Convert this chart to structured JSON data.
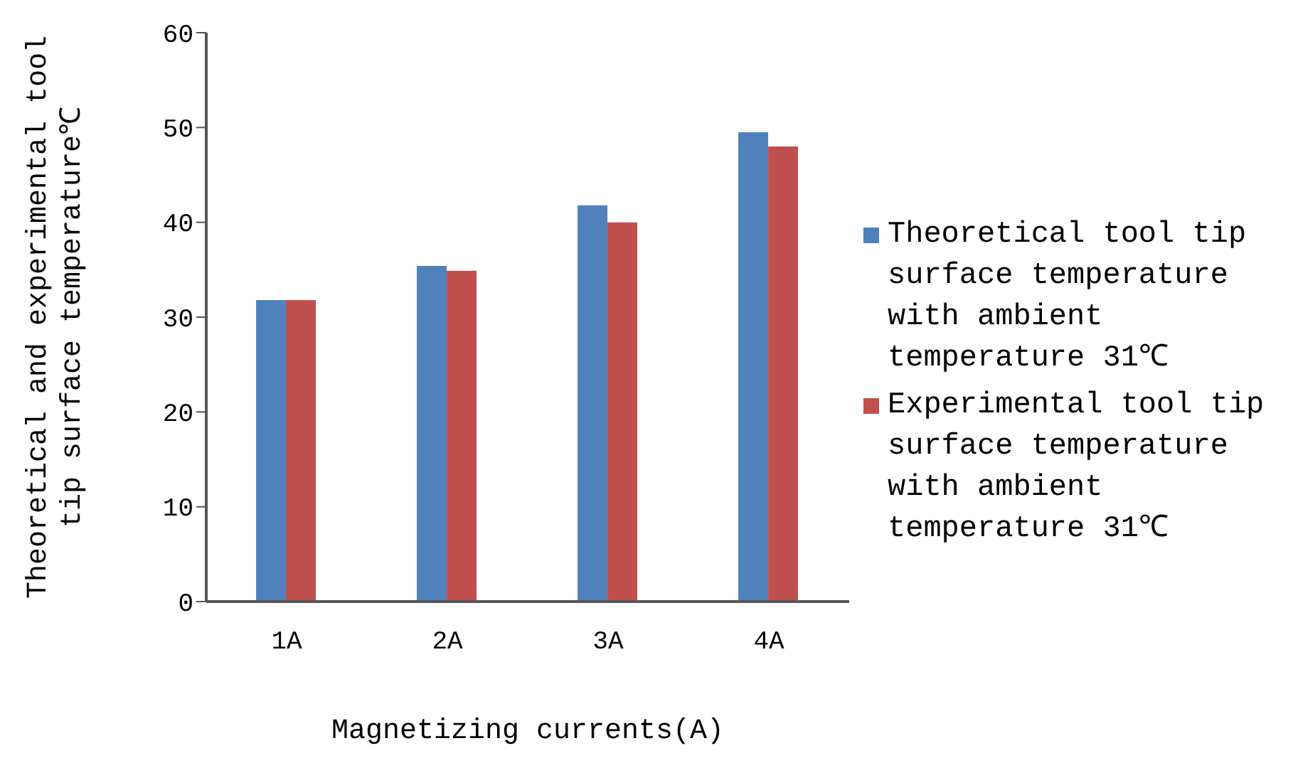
{
  "chart_data": {
    "type": "bar",
    "xlabel": "Magnetizing currents(A)",
    "ylabel": "Theoretical and experimental tool tip surface temperature℃",
    "categories": [
      "1A",
      "2A",
      "3A",
      "4A"
    ],
    "series": [
      {
        "name": "Theoretical tool tip surface temperature with ambient temperature 31℃",
        "color": "#4f81bd",
        "values": [
          31.8,
          35.4,
          41.8,
          49.5
        ]
      },
      {
        "name": "Experimental tool tip surface temperature with ambient temperature 31℃",
        "color": "#c0504d",
        "values": [
          31.8,
          34.9,
          40,
          48
        ]
      }
    ],
    "ylim": [
      0,
      60
    ],
    "yticks": [
      0,
      10,
      20,
      30,
      40,
      50,
      60
    ],
    "legend": "right"
  }
}
